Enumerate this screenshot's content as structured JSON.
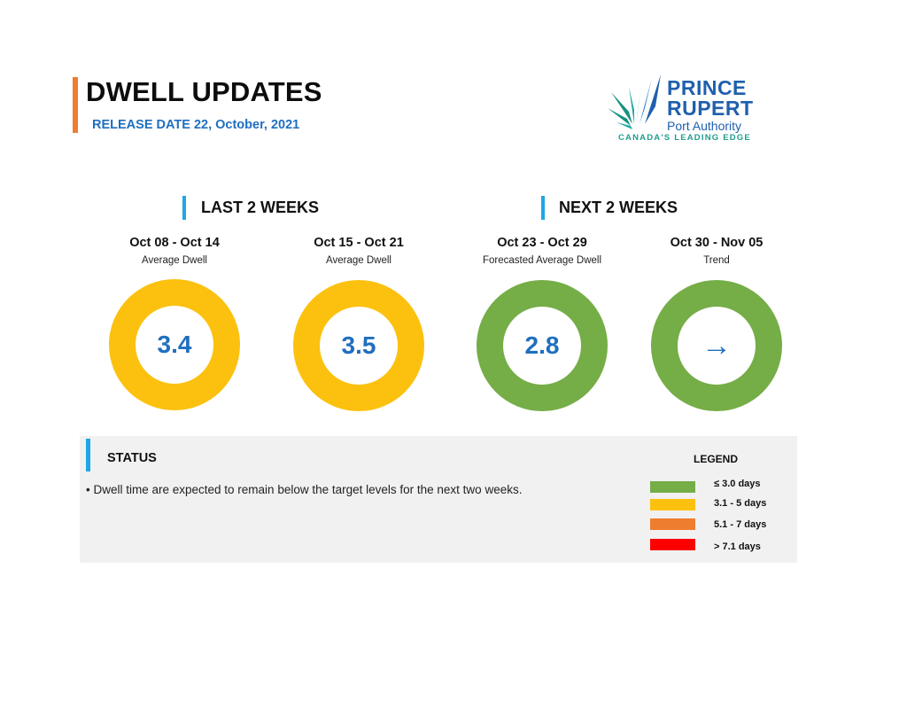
{
  "header": {
    "title": "DWELL UPDATES",
    "release": "RELEASE DATE 22, October, 2021"
  },
  "logo": {
    "line1": "PRINCE",
    "line2": "RUPERT",
    "line3": "Port Authority",
    "tagline": "CANADA'S LEADING EDGE"
  },
  "sections": {
    "last": "LAST 2 WEEKS",
    "next": "NEXT 2 WEEKS"
  },
  "colors": {
    "green": "#75ad47",
    "yellow": "#fcc10f",
    "orange": "#ef7d2f",
    "red": "#ff0000",
    "value": "#1f6fbf"
  },
  "periods": [
    {
      "date": "Oct 08 - Oct 14",
      "label": "Average Dwell",
      "value": "3.4",
      "color": "#fcc10f"
    },
    {
      "date": "Oct 15 - Oct 21",
      "label": "Average Dwell",
      "value": "3.5",
      "color": "#fcc10f"
    },
    {
      "date": "Oct 23 - Oct 29",
      "label": "Forecasted Average Dwell",
      "value": "2.8",
      "color": "#75ad47"
    },
    {
      "date": "Oct 30 - Nov 05",
      "label": "Trend",
      "value": "→",
      "icon": "arrow-right-icon",
      "color": "#75ad47"
    }
  ],
  "status": {
    "title": "STATUS",
    "text": "• Dwell time are expected to remain below the target levels for the next two weeks."
  },
  "legend": {
    "title": "LEGEND",
    "items": [
      {
        "label": "≤ 3.0 days",
        "color": "#75ad47"
      },
      {
        "label": "3.1 - 5 days",
        "color": "#fcc10f"
      },
      {
        "label": "5.1 - 7 days",
        "color": "#ef7d2f"
      },
      {
        "label": "> 7.1 days",
        "color": "#ff0000"
      }
    ]
  }
}
